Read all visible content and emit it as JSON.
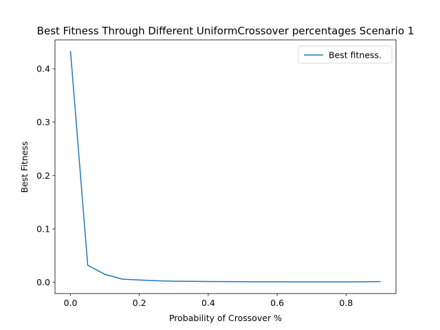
{
  "chart_data": {
    "type": "line",
    "title": "Best Fitness Through Different UniformCrossover percentages Scenario 1",
    "xlabel": "Probability of Crossover %",
    "ylabel": "Best Fitness",
    "xlim": [
      -0.045,
      0.945
    ],
    "ylim": [
      -0.021,
      0.454
    ],
    "xticks": [
      0.0,
      0.2,
      0.4,
      0.6,
      0.8
    ],
    "xtick_labels": [
      "0.0",
      "0.2",
      "0.4",
      "0.6",
      "0.8"
    ],
    "yticks": [
      0.0,
      0.1,
      0.2,
      0.3,
      0.4
    ],
    "ytick_labels": [
      "0.0",
      "0.1",
      "0.2",
      "0.3",
      "0.4"
    ],
    "grid": false,
    "legend_position": "top-right",
    "series": [
      {
        "name": "Best fitness.",
        "color": "#1f77b4",
        "x": [
          0.0,
          0.05,
          0.1,
          0.15,
          0.2,
          0.25,
          0.3,
          0.35,
          0.4,
          0.45,
          0.5,
          0.55,
          0.6,
          0.65,
          0.7,
          0.75,
          0.8,
          0.85,
          0.9
        ],
        "y": [
          0.433,
          0.032,
          0.015,
          0.006,
          0.0045,
          0.003,
          0.0022,
          0.0018,
          0.0016,
          0.0013,
          0.0012,
          0.0011,
          0.001,
          0.0009,
          0.0008,
          0.0008,
          0.0008,
          0.001,
          0.0014
        ]
      }
    ]
  }
}
